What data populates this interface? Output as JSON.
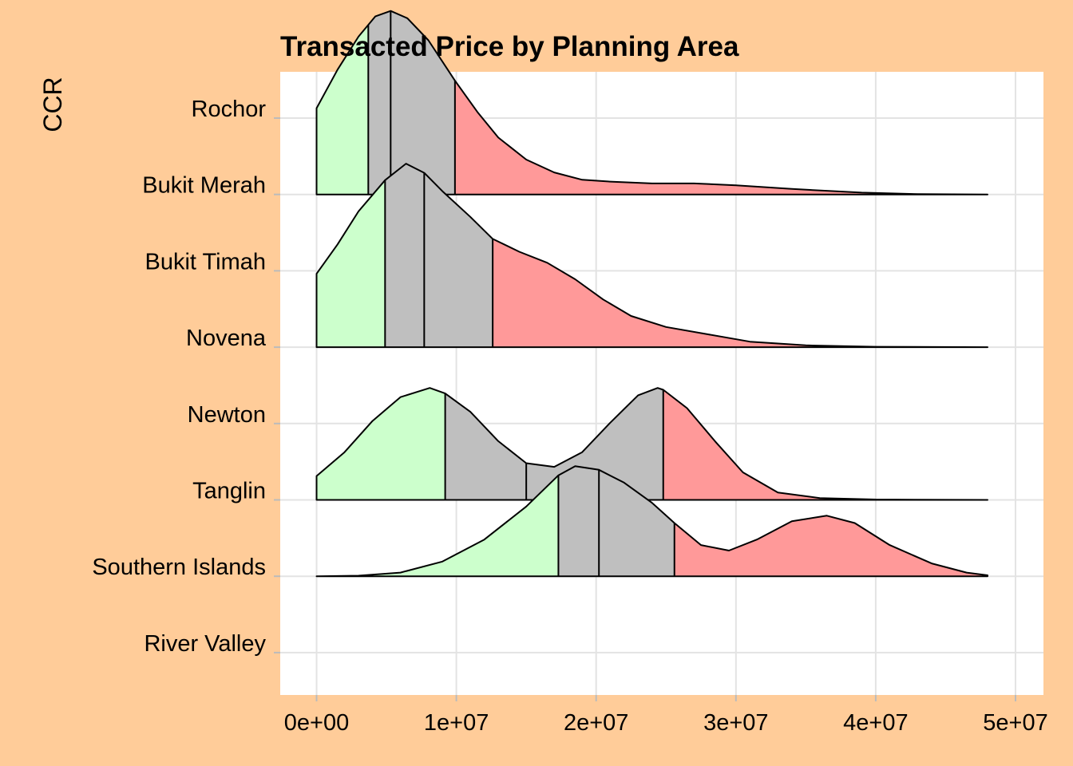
{
  "chart_data": {
    "type": "ridgeline",
    "title": "Transacted Price by Planning Area",
    "ylabel": "CCR",
    "xlabel": "",
    "xlim": [
      -2600000,
      52000000
    ],
    "x_ticks": [
      0,
      10000000,
      20000000,
      30000000,
      40000000,
      50000000
    ],
    "x_tick_labels": [
      "0e+00",
      "1e+07",
      "2e+07",
      "3e+07",
      "4e+07",
      "5e+07"
    ],
    "categories": [
      "Rochor",
      "Bukit Merah",
      "Bukit Timah",
      "Novena",
      "Newton",
      "Tanglin",
      "Southern Islands",
      "River Valley"
    ],
    "quantile_colors": {
      "lower": "#CCFFCC",
      "middle": "#BFBFBF",
      "upper": "#FF9999"
    },
    "background": "#FFCC99",
    "panel": "#FFFFFF",
    "series": [
      {
        "category": "Bukit Merah",
        "quantiles": [
          3700000,
          5300000,
          9900000
        ],
        "density": [
          [
            0,
            0.47
          ],
          [
            1500000,
            0.68
          ],
          [
            3000000,
            0.86
          ],
          [
            4200000,
            0.97
          ],
          [
            5300000,
            1.0
          ],
          [
            6500000,
            0.96
          ],
          [
            8000000,
            0.84
          ],
          [
            9900000,
            0.62
          ],
          [
            11500000,
            0.45
          ],
          [
            13000000,
            0.31
          ],
          [
            15000000,
            0.19
          ],
          [
            17000000,
            0.12
          ],
          [
            19000000,
            0.08
          ],
          [
            21000000,
            0.07
          ],
          [
            24000000,
            0.06
          ],
          [
            27000000,
            0.06
          ],
          [
            30000000,
            0.05
          ],
          [
            34000000,
            0.03
          ],
          [
            39000000,
            0.01
          ],
          [
            43000000,
            0.002
          ],
          [
            48000000,
            0.0
          ]
        ]
      },
      {
        "category": "Novena",
        "quantiles": [
          4900000,
          7700000,
          12600000
        ],
        "density": [
          [
            0,
            0.4
          ],
          [
            1500000,
            0.56
          ],
          [
            3000000,
            0.74
          ],
          [
            4900000,
            0.91
          ],
          [
            6400000,
            1.0
          ],
          [
            7700000,
            0.95
          ],
          [
            9000000,
            0.85
          ],
          [
            11000000,
            0.71
          ],
          [
            12600000,
            0.59
          ],
          [
            14500000,
            0.52
          ],
          [
            16500000,
            0.46
          ],
          [
            18500000,
            0.37
          ],
          [
            20500000,
            0.26
          ],
          [
            22500000,
            0.17
          ],
          [
            25000000,
            0.11
          ],
          [
            28000000,
            0.07
          ],
          [
            31000000,
            0.03
          ],
          [
            35000000,
            0.01
          ],
          [
            40000000,
            0.002
          ],
          [
            48000000,
            0.0
          ]
        ]
      },
      {
        "category": "Tanglin",
        "quantiles": [
          9200000,
          15000000,
          24800000
        ],
        "density": [
          [
            0,
            0.13
          ],
          [
            2000000,
            0.26
          ],
          [
            4000000,
            0.43
          ],
          [
            6000000,
            0.56
          ],
          [
            8100000,
            0.61
          ],
          [
            9200000,
            0.58
          ],
          [
            11000000,
            0.48
          ],
          [
            13000000,
            0.32
          ],
          [
            15000000,
            0.2
          ],
          [
            17000000,
            0.18
          ],
          [
            19000000,
            0.26
          ],
          [
            21000000,
            0.42
          ],
          [
            23000000,
            0.57
          ],
          [
            24400000,
            0.61
          ],
          [
            24800000,
            0.6
          ],
          [
            26500000,
            0.5
          ],
          [
            28500000,
            0.32
          ],
          [
            30500000,
            0.15
          ],
          [
            33000000,
            0.04
          ],
          [
            36000000,
            0.01
          ],
          [
            40000000,
            0.002
          ],
          [
            48000000,
            0.0
          ]
        ]
      },
      {
        "category": "Southern Islands",
        "quantiles": [
          17300000,
          20200000,
          25600000
        ],
        "density": [
          [
            0,
            0.0
          ],
          [
            3000000,
            0.003
          ],
          [
            6000000,
            0.02
          ],
          [
            9000000,
            0.08
          ],
          [
            12000000,
            0.2
          ],
          [
            15000000,
            0.38
          ],
          [
            17300000,
            0.55
          ],
          [
            18500000,
            0.6
          ],
          [
            20200000,
            0.58
          ],
          [
            22000000,
            0.51
          ],
          [
            24000000,
            0.4
          ],
          [
            25600000,
            0.29
          ],
          [
            27500000,
            0.17
          ],
          [
            29500000,
            0.14
          ],
          [
            31500000,
            0.2
          ],
          [
            34000000,
            0.3
          ],
          [
            36500000,
            0.33
          ],
          [
            38500000,
            0.29
          ],
          [
            41000000,
            0.17
          ],
          [
            44000000,
            0.07
          ],
          [
            46500000,
            0.02
          ],
          [
            48000000,
            0.005
          ]
        ]
      }
    ]
  }
}
